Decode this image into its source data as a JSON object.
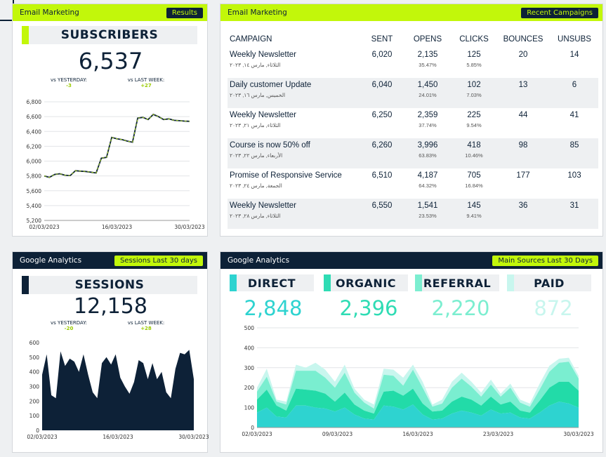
{
  "subscribers": {
    "header": "Email Marketing",
    "pill": "Results",
    "title": "SUBSCRIBERS",
    "value": "6,537",
    "vs_yesterday_label": "vs YESTERDAY:",
    "vs_yesterday": "-3",
    "vs_lastweek_label": "vs LAST WEEK:",
    "vs_lastweek": "+27"
  },
  "campaigns": {
    "header": "Email Marketing",
    "pill": "Recent Campaigns",
    "columns": [
      "CAMPAIGN",
      "SENT",
      "OPENS",
      "CLICKS",
      "BOUNCES",
      "UNSUBS"
    ],
    "rows": [
      {
        "name": "Weekly Newsletter",
        "date": "الثلاثاء, مارس ١٤, ٢٠٢٣",
        "sent": "6,020",
        "opens": "2,135",
        "open_rate": "35.47%",
        "clicks": "125",
        "click_rate": "5.85%",
        "bounces": "20",
        "unsubs": "14"
      },
      {
        "name": "Daily customer Update",
        "date": "الخميس, مارس ١٦, ٢٠٢٣",
        "sent": "6,040",
        "opens": "1,450",
        "open_rate": "24.01%",
        "clicks": "102",
        "click_rate": "7.03%",
        "bounces": "13",
        "unsubs": "6"
      },
      {
        "name": "Weekly Newsletter",
        "date": "الثلاثاء, مارس ٢١, ٢٠٢٣",
        "sent": "6,250",
        "opens": "2,359",
        "open_rate": "37.74%",
        "clicks": "225",
        "click_rate": "9.54%",
        "bounces": "44",
        "unsubs": "41"
      },
      {
        "name": "Course is now 50% off",
        "date": "الأربعاء, مارس ٢٢, ٢٠٢٣",
        "sent": "6,260",
        "opens": "3,996",
        "open_rate": "63.83%",
        "clicks": "418",
        "click_rate": "10.46%",
        "bounces": "98",
        "unsubs": "85"
      },
      {
        "name": "Promise of Responsive Service",
        "date": "الجمعة, مارس ٢٤, ٢٠٢٣",
        "sent": "6,510",
        "opens": "4,187",
        "open_rate": "64.32%",
        "clicks": "705",
        "click_rate": "16.84%",
        "bounces": "177",
        "unsubs": "103"
      },
      {
        "name": "Weekly Newsletter",
        "date": "الثلاثاء, مارس ٢٨, ٢٠٢٣",
        "sent": "6,550",
        "opens": "1,541",
        "open_rate": "23.53%",
        "clicks": "145",
        "click_rate": "9.41%",
        "bounces": "36",
        "unsubs": "31"
      }
    ]
  },
  "sessions": {
    "header": "Google Analytics",
    "pill": "Sessions Last 30 days",
    "title": "SESSIONS",
    "value": "12,158",
    "vs_yesterday_label": "vs YESTERDAY:",
    "vs_yesterday": "-20",
    "vs_lastweek_label": "vs LAST WEEK:",
    "vs_lastweek": "+28"
  },
  "sources": {
    "header": "Google Analytics",
    "pill": "Main Sources Last 30 Days",
    "items": [
      {
        "label": "DIRECT",
        "value": "2,848",
        "color": "#2ed3d0"
      },
      {
        "label": "ORGANIC",
        "value": "2,396",
        "color": "#2fdcb4"
      },
      {
        "label": "REFERRAL",
        "value": "2,220",
        "color": "#7ceed0"
      },
      {
        "label": "PAID",
        "value": "872",
        "color": "#c8f6ee"
      }
    ]
  },
  "chart_data": [
    {
      "type": "line",
      "x_ticks": [
        "02/03/2023",
        "16/03/2023",
        "30/03/2023"
      ],
      "y_ticks": [
        "6,800",
        "6,600",
        "6,400",
        "6,200",
        "6,000",
        "5,800",
        "5,600",
        "5,400",
        "5,200"
      ],
      "ylim": [
        5200,
        6800
      ],
      "series": [
        {
          "values": [
            5800,
            5780,
            5820,
            5830,
            5810,
            5805,
            5870,
            5865,
            5860,
            5850,
            5840,
            6040,
            6050,
            6320,
            6300,
            6290,
            6270,
            6255,
            6580,
            6590,
            6560,
            6630,
            6600,
            6560,
            6570,
            6550,
            6545,
            6540,
            6537
          ]
        }
      ],
      "line_color": "#0d2137",
      "accent_color": "#c2f70a"
    },
    {
      "type": "area",
      "x_ticks": [
        "02/03/2023",
        "16/03/2023",
        "30/03/2023"
      ],
      "y_ticks": [
        "600",
        "500",
        "400",
        "300",
        "200",
        "100",
        "0"
      ],
      "ylim": [
        0,
        600
      ],
      "series": [
        {
          "values": [
            380,
            520,
            240,
            220,
            540,
            440,
            490,
            470,
            400,
            520,
            380,
            260,
            220,
            460,
            500,
            450,
            520,
            360,
            300,
            250,
            330,
            480,
            460,
            350,
            460,
            350,
            400,
            260,
            220,
            420,
            530,
            520,
            550,
            350
          ]
        }
      ],
      "fill_color": "#0d2137"
    },
    {
      "type": "area",
      "stacked": true,
      "x_ticks": [
        "02/03/2023",
        "09/03/2023",
        "16/03/2023",
        "23/03/2023",
        "30/03/2023"
      ],
      "y_ticks": [
        "500",
        "400",
        "300",
        "200",
        "100",
        "0"
      ],
      "ylim": [
        0,
        500
      ],
      "series": [
        {
          "values": [
            75,
            100,
            55,
            50,
            110,
            110,
            100,
            95,
            80,
            100,
            65,
            45,
            40,
            110,
            105,
            90,
            115,
            65,
            40,
            45,
            70,
            85,
            75,
            60,
            90,
            70,
            75,
            50,
            45,
            75,
            110,
            130,
            120,
            100
          ]
        },
        {
          "values": [
            65,
            90,
            55,
            35,
            85,
            80,
            85,
            75,
            50,
            75,
            50,
            40,
            30,
            70,
            80,
            70,
            80,
            55,
            40,
            40,
            60,
            70,
            65,
            50,
            65,
            45,
            55,
            35,
            30,
            60,
            90,
            100,
            110,
            85
          ]
        },
        {
          "values": [
            40,
            65,
            20,
            30,
            90,
            95,
            100,
            80,
            70,
            100,
            60,
            40,
            25,
            85,
            75,
            50,
            95,
            80,
            25,
            35,
            70,
            90,
            65,
            45,
            60,
            40,
            70,
            40,
            30,
            55,
            80,
            95,
            100,
            60
          ]
        },
        {
          "values": [
            20,
            40,
            10,
            15,
            30,
            15,
            40,
            40,
            30,
            40,
            20,
            15,
            20,
            30,
            30,
            40,
            25,
            30,
            10,
            20,
            30,
            30,
            25,
            20,
            25,
            15,
            20,
            15,
            15,
            30,
            30,
            20,
            20,
            15
          ]
        }
      ],
      "colors": [
        "#2ed3d0",
        "#22dba8",
        "#7aeed0",
        "#c8f6ee"
      ]
    }
  ]
}
